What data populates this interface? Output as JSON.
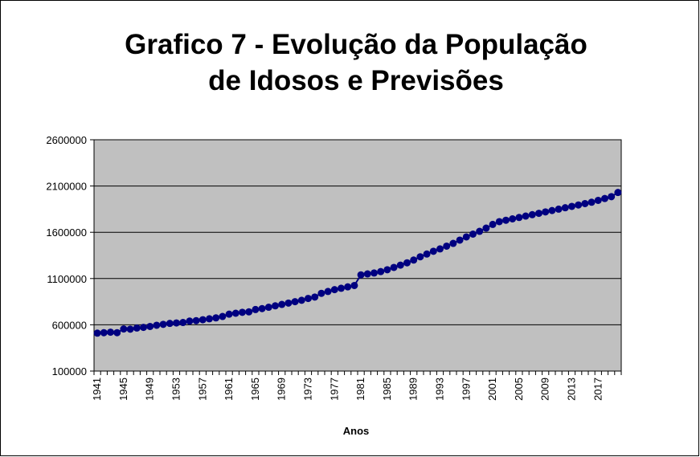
{
  "chart_data": {
    "type": "line",
    "title": "Grafico 7 - Evolução da População",
    "subtitle": "de Idosos e Previsões",
    "x_label": "Anos",
    "categories": [
      "1941",
      null,
      null,
      null,
      "1945",
      null,
      null,
      null,
      "1949",
      null,
      null,
      null,
      "1953",
      null,
      null,
      null,
      "1957",
      null,
      null,
      null,
      "1961",
      null,
      null,
      null,
      "1965",
      null,
      null,
      null,
      "1969",
      null,
      null,
      null,
      "1973",
      null,
      null,
      null,
      "1977",
      null,
      null,
      null,
      "1981",
      null,
      null,
      null,
      "1985",
      null,
      null,
      null,
      "1989",
      null,
      null,
      null,
      "1993",
      null,
      null,
      null,
      "1997",
      null,
      null,
      null,
      "2001",
      null,
      null,
      null,
      "2005",
      null,
      null,
      null,
      "2009",
      null,
      null,
      null,
      "2013",
      null,
      null,
      null,
      "2017",
      null,
      null,
      null
    ],
    "series": [
      {
        "color": "#000080",
        "values": [
          510000,
          515000,
          520000,
          515000,
          555000,
          553000,
          565000,
          572000,
          582000,
          595000,
          605000,
          615000,
          620000,
          625000,
          640000,
          645000,
          655000,
          665000,
          675000,
          690000,
          715000,
          725000,
          735000,
          740000,
          765000,
          775000,
          790000,
          805000,
          820000,
          835000,
          850000,
          865000,
          885000,
          900000,
          940000,
          960000,
          980000,
          995000,
          1010000,
          1025000,
          1140000,
          1150000,
          1160000,
          1175000,
          1195000,
          1220000,
          1245000,
          1270000,
          1300000,
          1335000,
          1365000,
          1395000,
          1420000,
          1450000,
          1480000,
          1515000,
          1550000,
          1580000,
          1610000,
          1645000,
          1685000,
          1715000,
          1730000,
          1745000,
          1760000,
          1775000,
          1790000,
          1805000,
          1820000,
          1835000,
          1850000,
          1865000,
          1880000,
          1895000,
          1910000,
          1925000,
          1945000,
          1965000,
          1985000,
          2030000
        ]
      }
    ],
    "ylim": [
      100000,
      2600000
    ],
    "yticks": [
      100000,
      600000,
      1100000,
      1600000,
      2100000,
      2600000
    ],
    "grid": true,
    "plot_background": "#c0c0c0"
  }
}
